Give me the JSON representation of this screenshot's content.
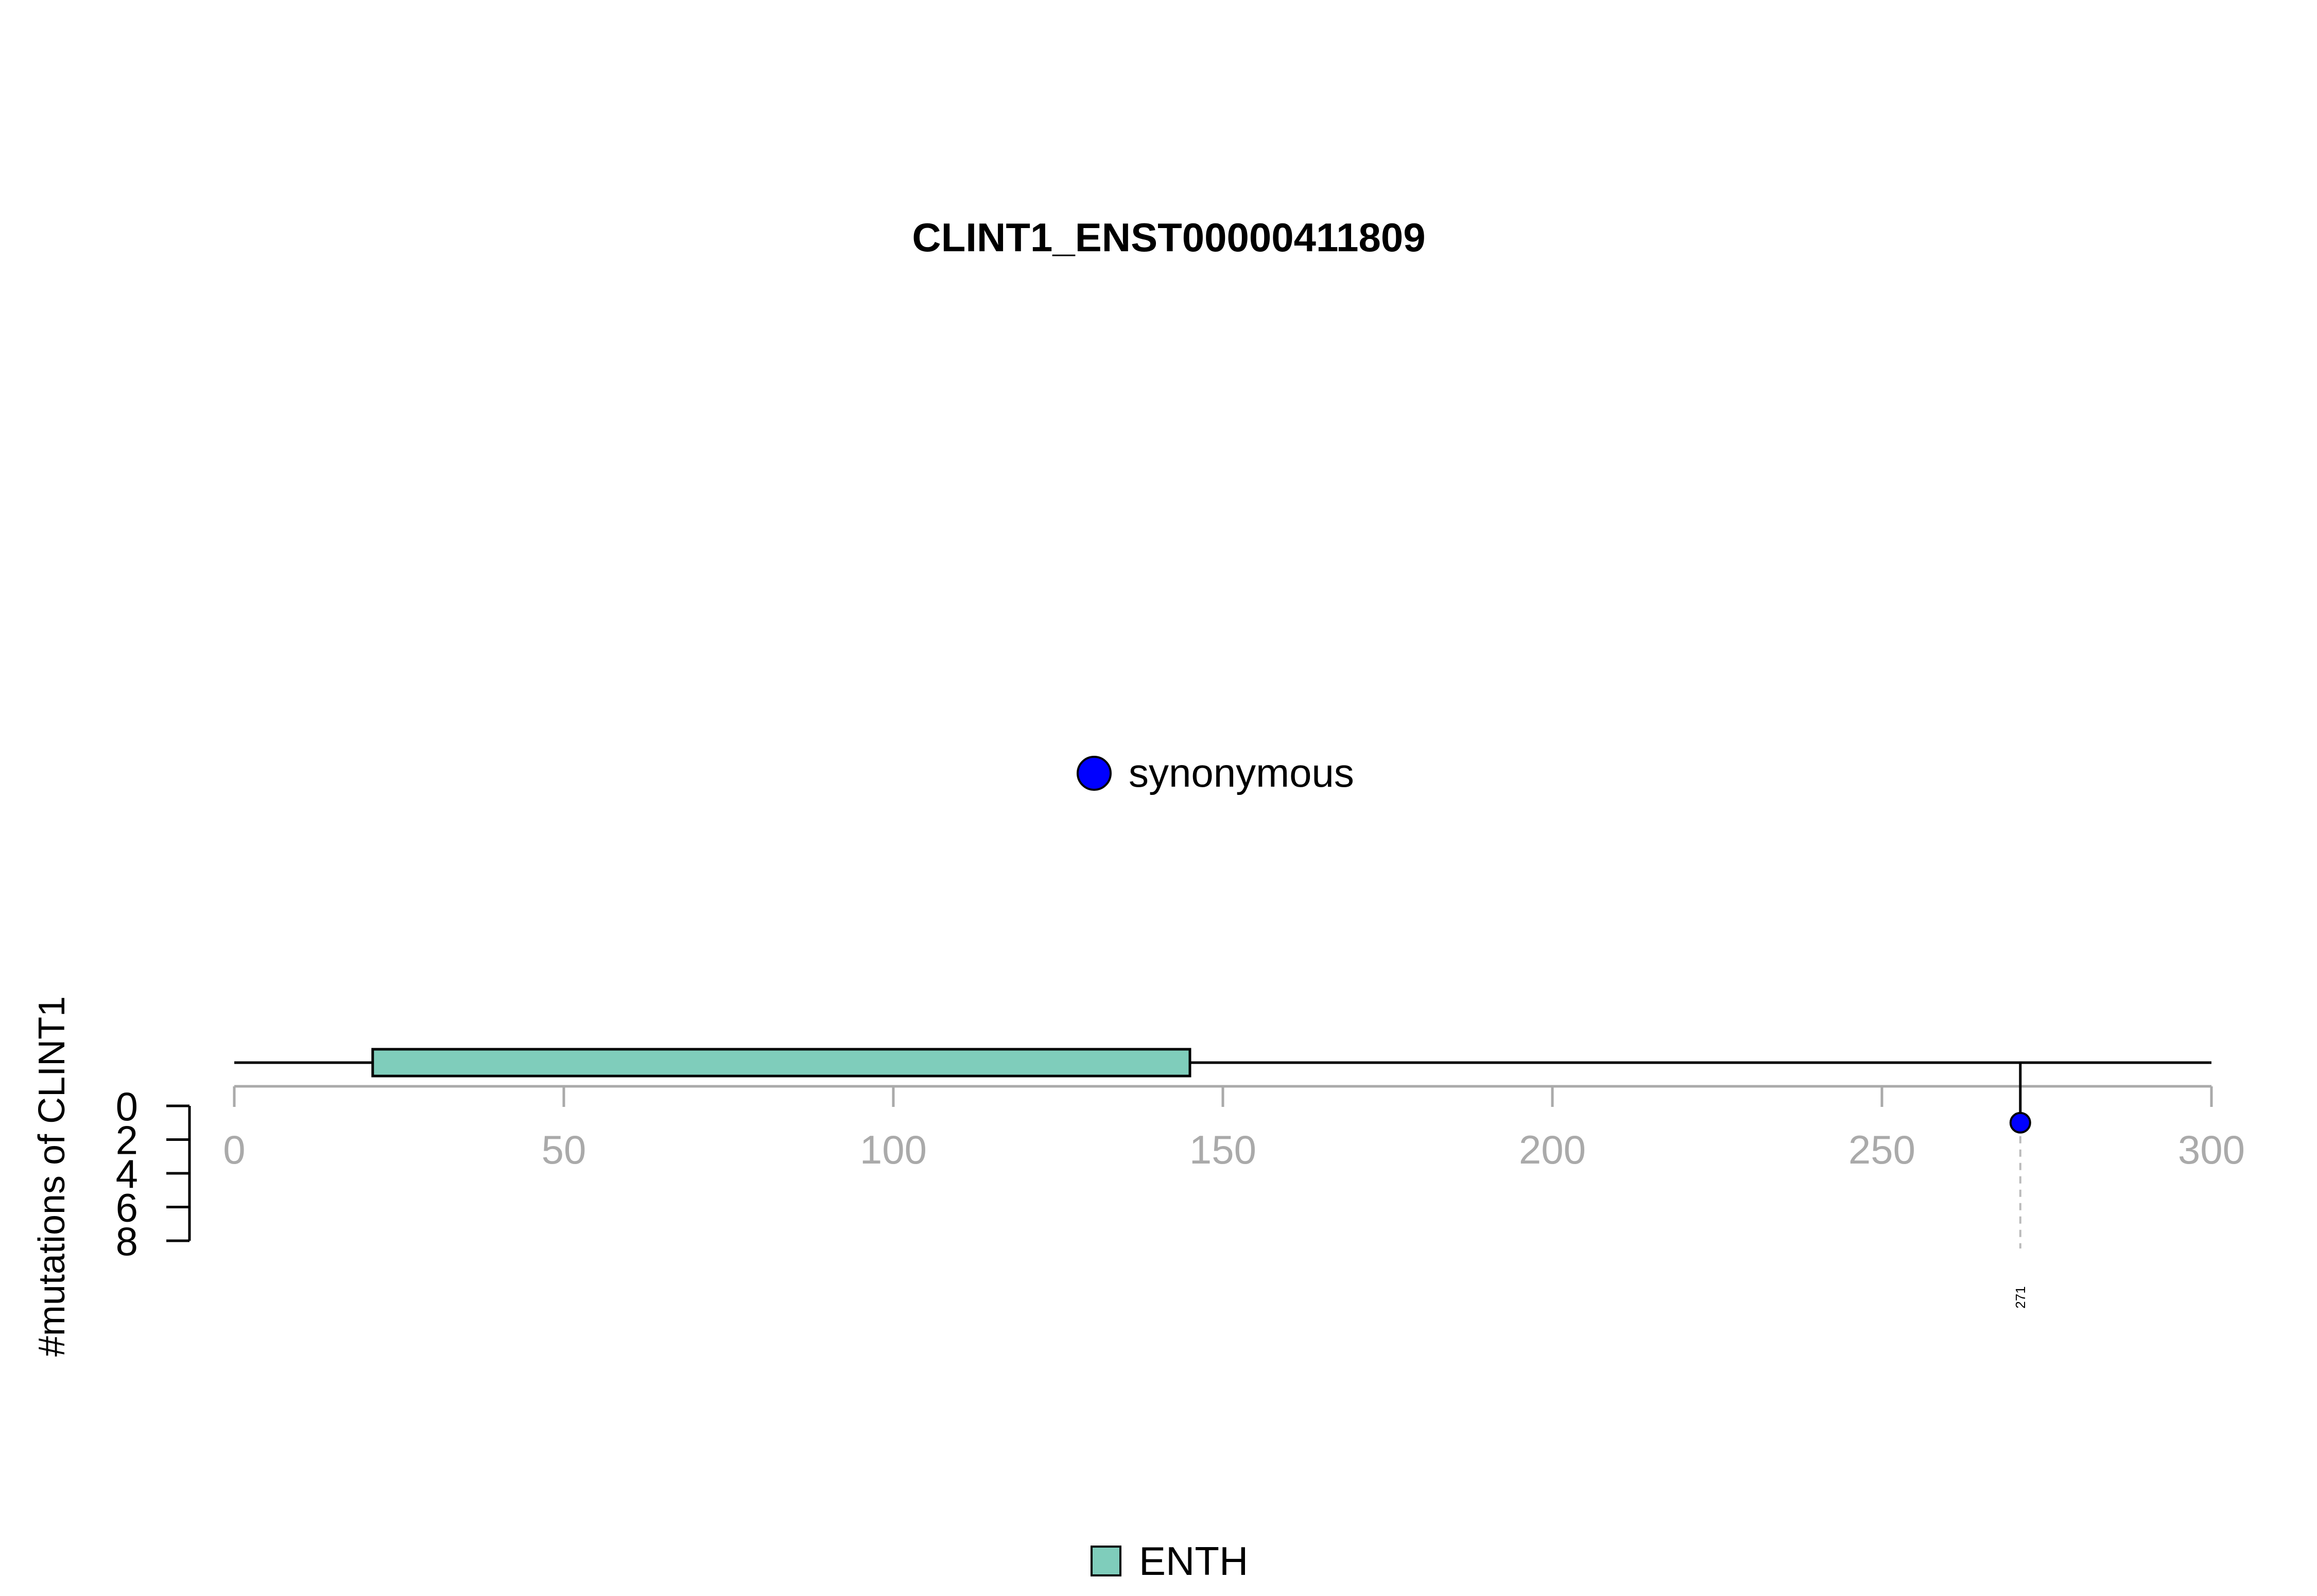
{
  "chart_data": {
    "type": "lollipop",
    "title": "CLINT1_ENST00000411809",
    "ylabel": "#mutations of CLINT1",
    "xlabel": "",
    "xlim": [
      0,
      300
    ],
    "x_ticks": [
      0,
      50,
      100,
      150,
      200,
      250,
      300
    ],
    "ylim": [
      0,
      8
    ],
    "y_ticks": [
      0,
      2,
      4,
      6,
      8
    ],
    "y_direction": "downward",
    "protein_length": 300,
    "domains": [
      {
        "name": "ENTH",
        "start": 21,
        "end": 145,
        "color": "#7fcdbb"
      }
    ],
    "mutations": [
      {
        "position": 271,
        "count": 1,
        "label": "271",
        "type": "synonymous",
        "color": "#0000ff"
      }
    ],
    "legend_mutation_types": [
      {
        "name": "synonymous",
        "color": "#0000ff"
      }
    ],
    "legend_domains": [
      {
        "name": "ENTH",
        "color": "#7fcdbb"
      }
    ],
    "axis_color": "#aaaaaa",
    "grid": false
  }
}
